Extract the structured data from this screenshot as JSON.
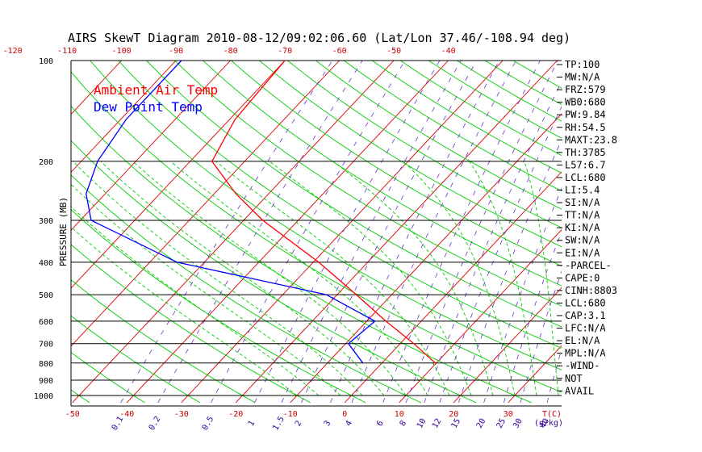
{
  "chart_data": {
    "type": "line",
    "title": "AIRS SkewT Diagram 2010-08-12/09:02:06.60 (Lat/Lon 37.46/-108.94 deg)",
    "ylabel": "PRESSURE (MB)",
    "y_scale": "log",
    "pressure_ticks": [
      "100",
      "200",
      "300",
      "400",
      "500",
      "600",
      "700",
      "800",
      "900",
      "1000"
    ],
    "pressure_lines": [
      100,
      200,
      300,
      400,
      500,
      600,
      700,
      800,
      900,
      1000
    ],
    "bottom_temp_ticks": [
      "-50",
      "-40",
      "-30",
      "-20",
      "-10",
      "0",
      "10",
      "20",
      "30"
    ],
    "top_temp_ticks": [
      "-120",
      "-110",
      "-100",
      "-90",
      "-80",
      "-70",
      "-60",
      "-50",
      "-40"
    ],
    "bottom_unit": "T(C)",
    "mixing_ratio_ticks": [
      "0.1",
      "0.2",
      "0.5",
      "1",
      "1.5",
      "2",
      "3",
      "4",
      "6",
      "8",
      "10",
      "12",
      "15",
      "20",
      "25",
      "30",
      "40"
    ],
    "mixing_unit": "(g/kg)",
    "ylim": [
      1000,
      100
    ],
    "series": [
      {
        "name": "Ambient Air Temp",
        "color": "#ff0000",
        "points": [
          {
            "p": 100,
            "t": -70
          },
          {
            "p": 150,
            "t": -69
          },
          {
            "p": 200,
            "t": -66
          },
          {
            "p": 250,
            "t": -56
          },
          {
            "p": 300,
            "t": -46.5
          },
          {
            "p": 400,
            "t": -29
          },
          {
            "p": 500,
            "t": -16.5
          },
          {
            "p": 600,
            "t": -6.5
          },
          {
            "p": 700,
            "t": 2.5
          },
          {
            "p": 800,
            "t": 9.8
          }
        ]
      },
      {
        "name": "Dew Point Temp",
        "color": "#0000ff",
        "points": [
          {
            "p": 100,
            "t": -89
          },
          {
            "p": 150,
            "t": -89
          },
          {
            "p": 200,
            "t": -87
          },
          {
            "p": 250,
            "t": -83.5
          },
          {
            "p": 300,
            "t": -78
          },
          {
            "p": 400,
            "t": -55
          },
          {
            "p": 500,
            "t": -22
          },
          {
            "p": 600,
            "t": -8.5
          },
          {
            "p": 700,
            "t": -9.5
          },
          {
            "p": 800,
            "t": -3.5
          }
        ]
      }
    ],
    "indices": [
      "TP:100",
      "MW:N/A",
      "FRZ:579",
      "WB0:680",
      "PW:9.84",
      "RH:54.5",
      "MAXT:23.8",
      "TH:3785",
      "L57:6.7",
      "LCL:680",
      "LI:5.4",
      "SI:N/A",
      "TT:N/A",
      "KI:N/A",
      "SW:N/A",
      "EI:N/A",
      "-PARCEL-",
      "CAPE:0",
      "CINH:8803",
      "LCL:680",
      "CAP:3.1",
      "LFC:N/A",
      "EL:N/A",
      "MPL:N/A",
      "-WIND-",
      "NOT",
      "AVAIL"
    ]
  },
  "colors": {
    "isotherm": "#dd0000",
    "dry_adiabat": "#00cc00",
    "moist_adiabat": "#00cc00",
    "mixing_ratio": "#6633cc",
    "isobar": "#000000"
  }
}
